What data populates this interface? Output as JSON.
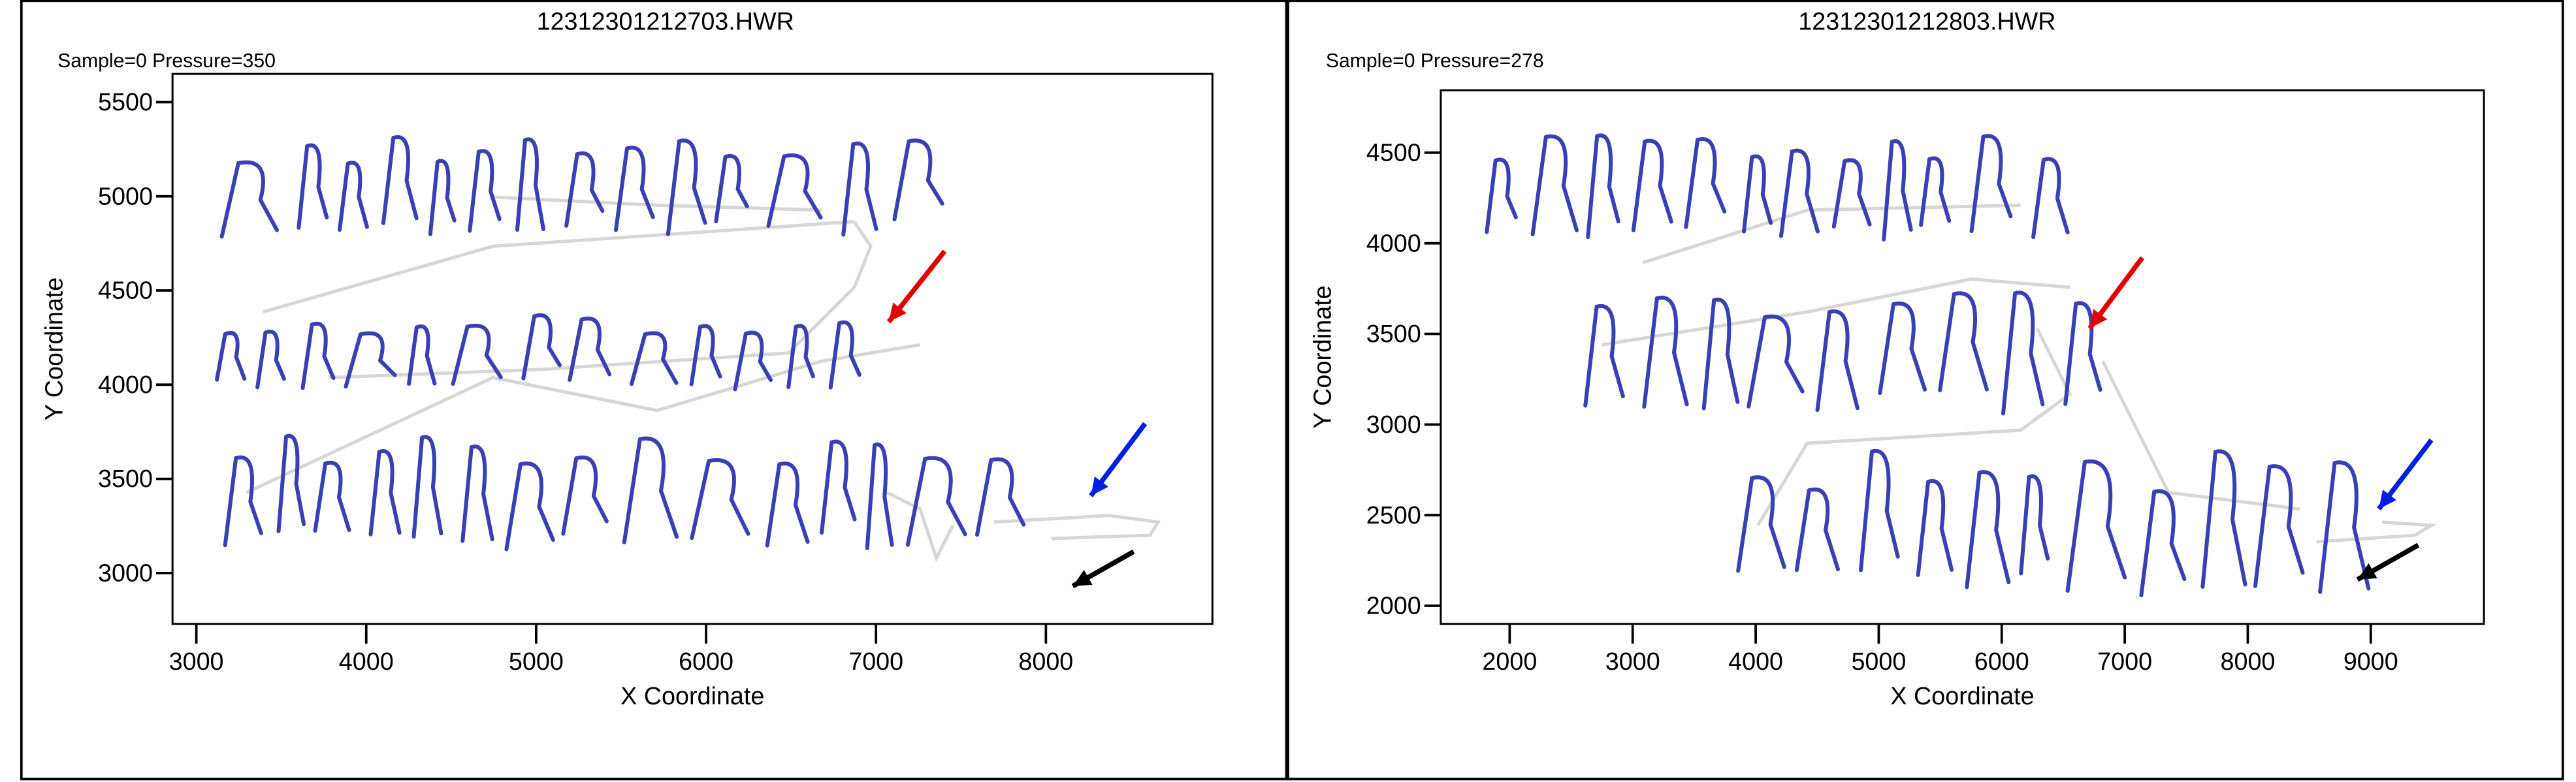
{
  "chart_data": [
    {
      "type": "handwriting",
      "title": "12312301212703.HWR",
      "subtitle": "Sample=0 Pressure=350",
      "x_label": "X Coordinate",
      "y_label": "Y Coordinate",
      "xlim": [
        2860,
        8980
      ],
      "ylim": [
        2730,
        5650
      ],
      "xticks": [
        3000,
        4000,
        5000,
        6000,
        7000,
        8000
      ],
      "yticks": [
        3000,
        3500,
        4000,
        4500,
        5000,
        5500
      ]
    },
    {
      "type": "handwriting",
      "title": "12312301212803.HWR",
      "subtitle": "Sample=0 Pressure=278",
      "x_label": "X Coordinate",
      "y_label": "Y Coordinate",
      "xlim": [
        1440,
        9920
      ],
      "ylim": [
        1900,
        4844
      ],
      "xticks": [
        2000,
        3000,
        4000,
        5000,
        6000,
        7000,
        8000,
        9000
      ],
      "yticks": [
        2000,
        2500,
        3000,
        3500,
        4000,
        4500
      ]
    }
  ]
}
